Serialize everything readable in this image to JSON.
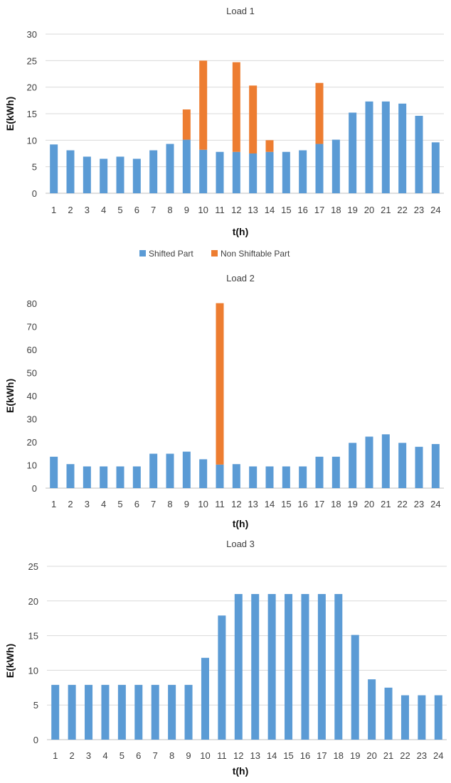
{
  "colors": {
    "shifted": "#5B9BD5",
    "non_shiftable": "#ED7D31"
  },
  "chart_data": [
    {
      "type": "bar",
      "stacked": true,
      "title": "Load 1",
      "xlabel": "t(h)",
      "ylabel": "E(kWh)",
      "ylim": [
        0,
        30
      ],
      "yticks": [
        0,
        5,
        10,
        15,
        20,
        25,
        30
      ],
      "grid": true,
      "legend": "bottom",
      "categories": [
        "1",
        "2",
        "3",
        "4",
        "5",
        "6",
        "7",
        "8",
        "9",
        "10",
        "11",
        "12",
        "13",
        "14",
        "15",
        "16",
        "17",
        "18",
        "19",
        "20",
        "21",
        "22",
        "23",
        "24"
      ],
      "series": [
        {
          "name": "Shifted Part",
          "values": [
            9.2,
            8.1,
            6.9,
            6.5,
            6.9,
            6.5,
            8.1,
            9.3,
            10.1,
            8.2,
            7.8,
            7.8,
            7.5,
            7.8,
            7.8,
            8.1,
            9.3,
            10.1,
            15.2,
            17.3,
            17.3,
            16.9,
            14.6,
            9.6
          ]
        },
        {
          "name": "Non Shiftable Part",
          "values": [
            0,
            0,
            0,
            0,
            0,
            0,
            0,
            0,
            5.7,
            16.8,
            0,
            16.9,
            12.8,
            2.2,
            0,
            0,
            11.5,
            0,
            0,
            0,
            0,
            0,
            0,
            0
          ]
        }
      ]
    },
    {
      "type": "bar",
      "stacked": true,
      "title": "Load 2",
      "xlabel": "t(h)",
      "ylabel": "E(kWh)",
      "ylim": [
        0,
        80
      ],
      "yticks": [
        0,
        10,
        20,
        30,
        40,
        50,
        60,
        70,
        80
      ],
      "grid": false,
      "categories": [
        "1",
        "2",
        "3",
        "4",
        "5",
        "6",
        "7",
        "8",
        "9",
        "10",
        "11",
        "12",
        "13",
        "14",
        "15",
        "16",
        "17",
        "18",
        "19",
        "20",
        "21",
        "22",
        "23",
        "24"
      ],
      "series": [
        {
          "values": [
            13.6,
            10.4,
            9.4,
            9.4,
            9.4,
            9.4,
            14.9,
            14.9,
            15.8,
            12.5,
            10.2,
            10.4,
            9.4,
            9.4,
            9.4,
            9.4,
            13.6,
            13.6,
            19.6,
            22.3,
            23.3,
            19.6,
            17.9,
            19.1
          ]
        },
        {
          "values": [
            0,
            0,
            0,
            0,
            0,
            0,
            0,
            0,
            0,
            0,
            69.9,
            0,
            0,
            0,
            0,
            0,
            0,
            0,
            0,
            0,
            0,
            0,
            0,
            0
          ]
        }
      ]
    },
    {
      "type": "bar",
      "title": "Load 3",
      "xlabel": "t(h)",
      "ylabel": "E(kWh)",
      "ylim": [
        0,
        25
      ],
      "yticks": [
        0,
        5,
        10,
        15,
        20,
        25
      ],
      "grid": true,
      "categories": [
        "1",
        "2",
        "3",
        "4",
        "5",
        "6",
        "7",
        "8",
        "9",
        "10",
        "11",
        "12",
        "13",
        "14",
        "15",
        "16",
        "17",
        "18",
        "19",
        "20",
        "21",
        "22",
        "23",
        "24"
      ],
      "series": [
        {
          "values": [
            7.9,
            7.9,
            7.9,
            7.9,
            7.9,
            7.9,
            7.9,
            7.9,
            7.9,
            11.8,
            17.9,
            21.0,
            21.0,
            21.0,
            21.0,
            21.0,
            21.0,
            21.0,
            15.1,
            8.7,
            7.5,
            6.4,
            6.4,
            6.4
          ]
        }
      ]
    }
  ]
}
